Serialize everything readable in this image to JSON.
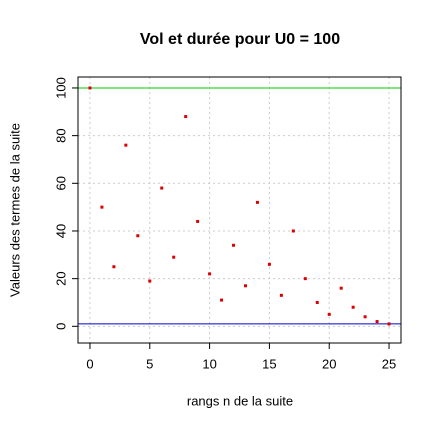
{
  "chart_data": {
    "type": "scatter",
    "title": "Vol et durée pour U0 = 100",
    "xlabel": "rangs n de la suite",
    "ylabel": "Valeurs des termes de la suite",
    "series": [
      {
        "color": "#dd0000",
        "x": [
          0,
          1,
          2,
          3,
          4,
          5,
          6,
          7,
          8,
          9,
          10,
          11,
          12,
          13,
          14,
          15,
          16,
          17,
          18,
          19,
          20,
          21,
          22,
          23,
          24,
          25
        ],
        "values": [
          100,
          50,
          25,
          76,
          38,
          19,
          58,
          29,
          88,
          44,
          22,
          11,
          34,
          17,
          52,
          26,
          13,
          40,
          20,
          10,
          5,
          16,
          8,
          4,
          2,
          1
        ]
      }
    ],
    "hlines": [
      {
        "value": 100,
        "color": "#00cc00"
      },
      {
        "value": 1,
        "color": "#0000cc"
      }
    ],
    "xlim": [
      -1,
      26
    ],
    "ylim": [
      -7,
      104.6
    ],
    "xticks": [
      0,
      5,
      10,
      15,
      20,
      25
    ],
    "yticks": [
      0,
      20,
      40,
      60,
      80,
      100
    ],
    "grid": true
  }
}
